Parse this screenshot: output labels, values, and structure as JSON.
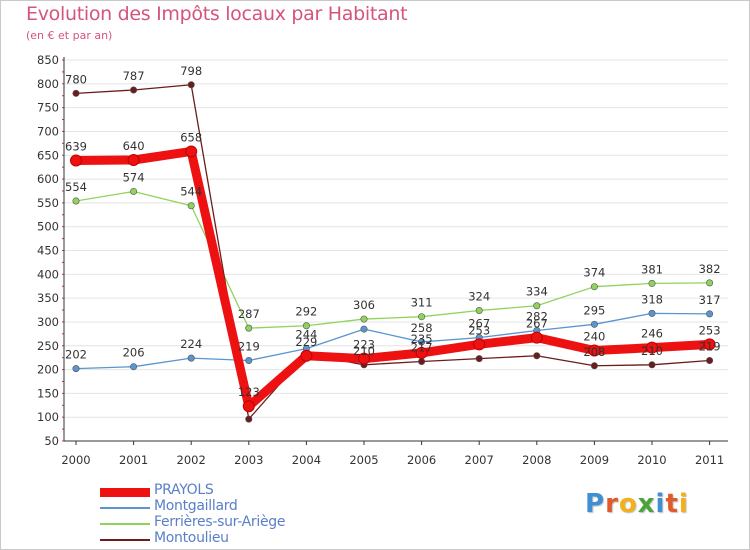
{
  "title": "Evolution des Impôts locaux par Habitant",
  "subtitle": "(en € et par an)",
  "logo": {
    "letters": [
      "P",
      "r",
      "o",
      "x",
      "i",
      "t",
      "i"
    ],
    "colors": [
      "#3f8fd2",
      "#e05a2b",
      "#f3b01b",
      "#4ba33a",
      "#3f8fd2",
      "#e05a2b",
      "#f3b01b"
    ]
  },
  "chart_data": {
    "type": "line",
    "title": "Evolution des Impôts locaux par Habitant",
    "ylabel": "(en € et par an)",
    "xlabel": "",
    "x": [
      "2000",
      "2001",
      "2002",
      "2003",
      "2004",
      "2005",
      "2006",
      "2007",
      "2008",
      "2009",
      "2010",
      "2011"
    ],
    "ylim": [
      50,
      850
    ],
    "yticks": [
      "50",
      "100",
      "150",
      "200",
      "250",
      "300",
      "350",
      "400",
      "450",
      "500",
      "550",
      "600",
      "650",
      "700",
      "750",
      "800",
      "850"
    ],
    "grid": "horizontal",
    "series": [
      {
        "name": "PRAYOLS",
        "color": "#ee1111",
        "values": [
          639,
          640,
          658,
          123,
          229,
          223,
          235,
          253,
          267,
          240,
          246,
          253
        ],
        "labels": [
          "639",
          "640",
          "658",
          "123",
          "229",
          "223",
          "235",
          "253",
          "267",
          "240",
          "246",
          "253"
        ]
      },
      {
        "name": "Montgaillard",
        "color": "#5a94d1",
        "values": [
          202,
          206,
          224,
          219,
          244,
          285,
          258,
          267,
          282,
          295,
          318,
          317
        ],
        "labels": [
          "202",
          "206",
          "224",
          "219",
          "244",
          "",
          "258",
          "267",
          "282",
          "295",
          "318",
          "317"
        ]
      },
      {
        "name": "Ferrières-sur-Ariège",
        "color": "#8fd35c",
        "values": [
          554,
          574,
          544,
          287,
          292,
          306,
          311,
          324,
          334,
          374,
          381,
          382
        ],
        "labels": [
          "554",
          "574",
          "544",
          "287",
          "292",
          "306",
          "311",
          "324",
          "334",
          "374",
          "381",
          "382"
        ]
      },
      {
        "name": "Montoulieu",
        "color": "#6b1c1c",
        "values": [
          780,
          787,
          798,
          96,
          233,
          210,
          217,
          223,
          229,
          208,
          210,
          219
        ],
        "labels": [
          "780",
          "787",
          "798",
          "",
          "",
          "210",
          "217",
          "",
          "",
          "208",
          "210",
          "219"
        ]
      }
    ]
  }
}
